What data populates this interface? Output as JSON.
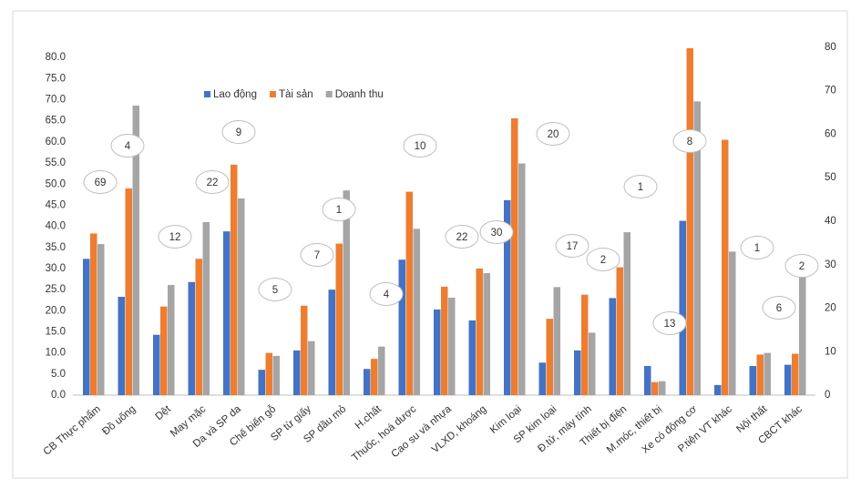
{
  "chart_data": {
    "type": "bar",
    "categories": [
      "CB Thực phẩm",
      "Đồ uống",
      "Dệt",
      "May mặc",
      "Da và SP da",
      "Chế biến gỗ",
      "SP từ giấy",
      "SP dầu mỏ",
      "H.chất",
      "Thuốc, hoá dược",
      "Cao su và nhựa",
      "VLXD, khoáng",
      "Kim loại",
      "SP kim loại",
      "Đ.tử, máy tính",
      "Thiết bị điện",
      "M.móc, thiết bị",
      "Xe có động cơ",
      "P.tiện VT khác",
      "Nội thất",
      "CBCT khác"
    ],
    "series": [
      {
        "name": "Lao động",
        "color": "#4472c4",
        "values": [
          32.3,
          23.3,
          14.3,
          26.8,
          38.8,
          6.0,
          10.6,
          25.0,
          6.2,
          32.1,
          20.3,
          17.7,
          46.2,
          7.7,
          10.6,
          23.0,
          6.9,
          41.3,
          2.4,
          6.9,
          7.2
        ]
      },
      {
        "name": "Tài sản",
        "color": "#ed7d31",
        "values": [
          38.3,
          49.0,
          21.0,
          32.3,
          54.6,
          10.0,
          21.2,
          35.9,
          8.6,
          48.2,
          25.7,
          30.0,
          65.6,
          18.1,
          23.8,
          30.3,
          3.1,
          82.2,
          60.5,
          9.6,
          9.8
        ]
      },
      {
        "name": "Doanh thu",
        "color": "#a5a5a5",
        "values": [
          35.8,
          68.6,
          26.1,
          41.0,
          46.6,
          9.3,
          12.8,
          48.5,
          11.5,
          39.4,
          23.1,
          28.9,
          54.9,
          25.6,
          14.8,
          38.6,
          3.3,
          69.6,
          34.0,
          10.0,
          31.1
        ]
      }
    ],
    "annotations": [
      "69",
      "4",
      "12",
      "22",
      "9",
      "5",
      "7",
      "1",
      "4",
      "10",
      "22",
      "30",
      "20",
      "17",
      "2",
      "1",
      "13",
      "8",
      "1",
      "6",
      "2"
    ],
    "ylim": [
      0,
      85
    ],
    "yticks": [
      {
        "value": 0,
        "label": "0.0"
      },
      {
        "value": 5,
        "label": "5.0"
      },
      {
        "value": 10,
        "label": "10.0"
      },
      {
        "value": 15,
        "label": "15.0"
      },
      {
        "value": 20,
        "label": "20.0"
      },
      {
        "value": 25,
        "label": "25.0"
      },
      {
        "value": 30,
        "label": "30.0"
      },
      {
        "value": 35,
        "label": "35.0"
      },
      {
        "value": 40,
        "label": "40.0"
      },
      {
        "value": 45,
        "label": "45.0"
      },
      {
        "value": 50,
        "label": "50.0"
      },
      {
        "value": 55,
        "label": "55.0"
      },
      {
        "value": 60,
        "label": "60.0"
      },
      {
        "value": 65,
        "label": "65.0"
      },
      {
        "value": 70,
        "label": "70.0"
      },
      {
        "value": 75,
        "label": "75.0"
      },
      {
        "value": 80,
        "label": "80.0"
      }
    ],
    "y2lim": [
      0,
      82.5
    ],
    "y2ticks": [
      0,
      10,
      20,
      30,
      40,
      50,
      60,
      70,
      80
    ],
    "grid": false,
    "legend": "top-left"
  }
}
